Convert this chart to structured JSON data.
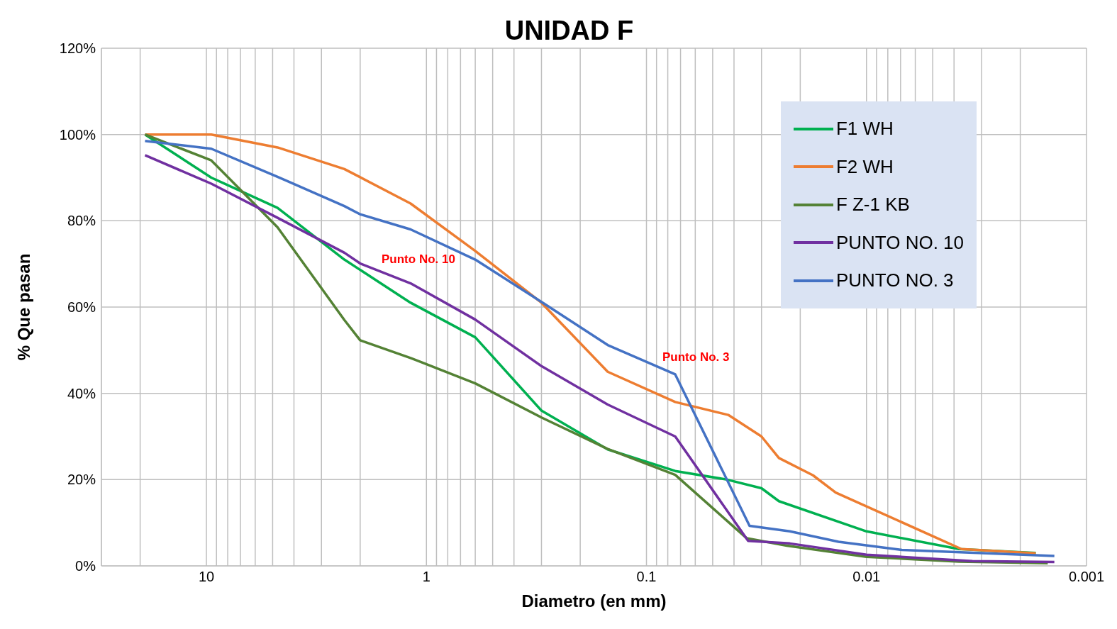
{
  "chart_data": {
    "type": "line",
    "title": "UNIDAD F",
    "xlabel": "Diametro (en mm)",
    "ylabel": "% Que pasan",
    "log": "x",
    "grid": true,
    "legend": "top right",
    "xlim": [
      30,
      0.001
    ],
    "xticks": [
      {
        "value": 30,
        "label": null
      },
      {
        "value": 20,
        "label": null
      },
      10,
      {
        "value": 9,
        "label": null
      },
      {
        "value": 8,
        "label": null
      },
      {
        "value": 7,
        "label": null
      },
      {
        "value": 6,
        "label": null
      },
      {
        "value": 5,
        "label": null
      },
      {
        "value": 4,
        "label": null
      },
      {
        "value": 3,
        "label": null
      },
      {
        "value": 2,
        "label": null
      },
      1,
      {
        "value": 0.9,
        "label": null
      },
      {
        "value": 0.8,
        "label": null
      },
      {
        "value": 0.7,
        "label": null
      },
      {
        "value": 0.6,
        "label": null
      },
      {
        "value": 0.5,
        "label": null
      },
      {
        "value": 0.4,
        "label": null
      },
      {
        "value": 0.3,
        "label": null
      },
      {
        "value": 0.2,
        "label": null
      },
      0.1,
      {
        "value": 0.09,
        "label": null
      },
      {
        "value": 0.08,
        "label": null
      },
      {
        "value": 0.07,
        "label": null
      },
      {
        "value": 0.06,
        "label": null
      },
      {
        "value": 0.05,
        "label": null
      },
      {
        "value": 0.04,
        "label": null
      },
      {
        "value": 0.03,
        "label": null
      },
      {
        "value": 0.02,
        "label": null
      },
      0.01,
      {
        "value": 0.009,
        "label": null
      },
      {
        "value": 0.008,
        "label": null
      },
      {
        "value": 0.007,
        "label": null
      },
      {
        "value": 0.006,
        "label": null
      },
      {
        "value": 0.005,
        "label": null
      },
      {
        "value": 0.004,
        "label": null
      },
      {
        "value": 0.003,
        "label": null
      },
      {
        "value": 0.002,
        "label": null
      },
      0.001
    ],
    "ylim": [
      0,
      120
    ],
    "yticks": [
      {
        "value": 0,
        "label": "0%"
      },
      {
        "value": 20,
        "label": "20%"
      },
      {
        "value": 40,
        "label": "40%"
      },
      {
        "value": 60,
        "label": "60%"
      },
      {
        "value": 80,
        "label": "80%"
      },
      {
        "value": 100,
        "label": "100%"
      },
      {
        "value": 120,
        "label": "120%"
      }
    ],
    "series": [
      {
        "name": "F1 WH",
        "color": "#00b050",
        "x": [
          19,
          9.5,
          4.75,
          2.36,
          1.18,
          0.6,
          0.3,
          0.15,
          0.074,
          0.043,
          0.03,
          0.025,
          0.01,
          0.0038,
          0.0017
        ],
        "values": [
          100,
          90,
          83,
          71,
          61,
          53,
          36,
          27,
          22,
          20,
          18,
          15,
          8,
          3.9,
          3
        ]
      },
      {
        "name": "F2 WH",
        "color": "#ed7d31",
        "x": [
          19,
          9.5,
          4.75,
          2.36,
          1.18,
          0.6,
          0.3,
          0.15,
          0.074,
          0.0425,
          0.03,
          0.025,
          0.0175,
          0.0138,
          0.0037,
          0.0017
        ],
        "values": [
          100,
          100,
          97,
          92,
          84,
          73,
          61,
          45,
          38,
          35,
          30,
          25,
          21,
          17,
          3.9,
          2.9
        ]
      },
      {
        "name": "F Z-1 KB",
        "color": "#548235",
        "x": [
          19,
          9.5,
          4.75,
          2.36,
          2,
          1.18,
          0.6,
          0.3,
          0.15,
          0.074,
          0.035,
          0.023,
          0.01,
          0.0038,
          0.0015
        ],
        "values": [
          100,
          94,
          78.5,
          57,
          52.3,
          48.2,
          42.3,
          34.4,
          27.1,
          21.1,
          6.4,
          4.7,
          2.1,
          1,
          0.6
        ]
      },
      {
        "name": "PUNTO NO. 10",
        "color": "#7030a0",
        "x": [
          19,
          9.5,
          4.75,
          2.36,
          2,
          1.18,
          0.6,
          0.3,
          0.15,
          0.074,
          0.0345,
          0.0223,
          0.01,
          0.0033,
          0.0014
        ],
        "values": [
          95.2,
          88.6,
          80.7,
          72.6,
          70.1,
          65.5,
          57.1,
          46.3,
          37.4,
          30,
          5.8,
          5.2,
          2.6,
          1.1,
          0.9
        ]
      },
      {
        "name": "PUNTO NO. 3",
        "color": "#4472c4",
        "x": [
          19,
          9.5,
          4.75,
          2.36,
          2,
          1.18,
          0.6,
          0.3,
          0.15,
          0.074,
          0.034,
          0.0223,
          0.0134,
          0.0069,
          0.0014
        ],
        "values": [
          98.5,
          96.7,
          90.2,
          83.4,
          81.5,
          78,
          71,
          61.2,
          51.2,
          44.4,
          9.3,
          8,
          5.6,
          3.7,
          2.3
        ]
      }
    ],
    "annotations": [
      "Punto No. 10",
      "Punto No. 3"
    ]
  }
}
